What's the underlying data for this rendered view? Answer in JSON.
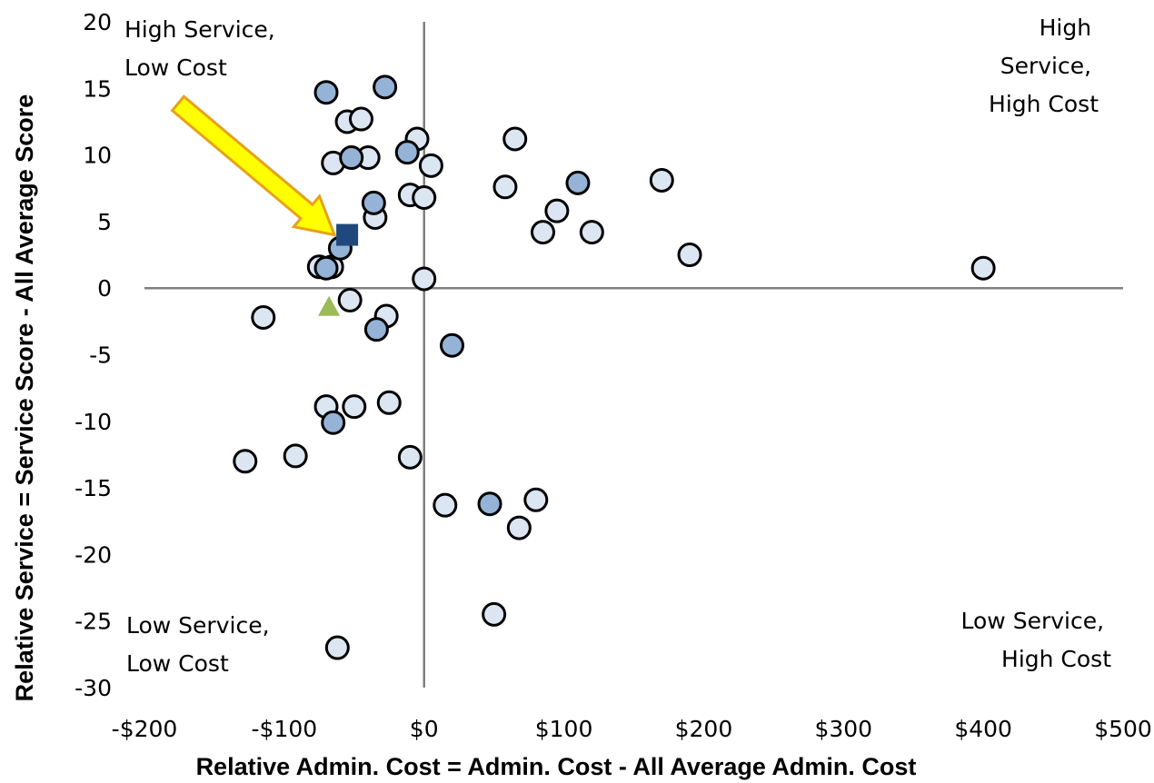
{
  "chart_data": {
    "type": "scatter",
    "xlabel": "Relative Admin. Cost = Admin. Cost - All Average Admin. Cost",
    "ylabel": "Relative Service = Service Score - All Average Score",
    "xlim": [
      -200,
      500
    ],
    "ylim": [
      -30,
      20
    ],
    "x_ticks": [
      {
        "value": -200,
        "label": "-$200"
      },
      {
        "value": -100,
        "label": "-$100"
      },
      {
        "value": 0,
        "label": "$0"
      },
      {
        "value": 100,
        "label": "$100"
      },
      {
        "value": 200,
        "label": "$200"
      },
      {
        "value": 300,
        "label": "$300"
      },
      {
        "value": 400,
        "label": "$400"
      },
      {
        "value": 500,
        "label": "$500"
      }
    ],
    "y_ticks": [
      {
        "value": 20,
        "label": "20"
      },
      {
        "value": 15,
        "label": "15"
      },
      {
        "value": 10,
        "label": "10"
      },
      {
        "value": 5,
        "label": "5"
      },
      {
        "value": 0,
        "label": "0"
      },
      {
        "value": -5,
        "label": "-5"
      },
      {
        "value": -10,
        "label": "-10"
      },
      {
        "value": -15,
        "label": "-15"
      },
      {
        "value": -20,
        "label": "-20"
      },
      {
        "value": -25,
        "label": "-25"
      },
      {
        "value": -30,
        "label": "-30"
      }
    ],
    "grid": false,
    "quadrant_labels": {
      "top_left": [
        "High Service,",
        "Low Cost"
      ],
      "top_right": [
        "High",
        "Service,",
        "High Cost"
      ],
      "bottom_left": [
        "Low Service,",
        "Low Cost"
      ],
      "bottom_right": [
        "Low Service,",
        "High Cost"
      ]
    },
    "series": [
      {
        "marker": "circle",
        "color": "#dce6f2",
        "points": [
          [
            -55,
            12.5
          ],
          [
            -45,
            12.7
          ],
          [
            -65,
            9.4
          ],
          [
            -40,
            9.8
          ],
          [
            -5,
            11.2
          ],
          [
            5,
            9.2
          ],
          [
            -10,
            7.0
          ],
          [
            0,
            6.8
          ],
          [
            -35,
            5.3
          ],
          [
            65,
            11.2
          ],
          [
            58,
            7.6
          ],
          [
            95,
            5.8
          ],
          [
            85,
            4.2
          ],
          [
            120,
            4.2
          ],
          [
            170,
            8.1
          ],
          [
            190,
            2.5
          ],
          [
            400,
            1.5
          ],
          [
            -75,
            1.6
          ],
          [
            -66,
            1.6
          ],
          [
            0,
            0.7
          ],
          [
            -53,
            -0.9
          ],
          [
            -27,
            -2.1
          ],
          [
            -115,
            -2.2
          ],
          [
            -70,
            -8.9
          ],
          [
            -50,
            -8.9
          ],
          [
            -25,
            -8.6
          ],
          [
            -92,
            -12.6
          ],
          [
            -128,
            -13.0
          ],
          [
            -10,
            -12.7
          ],
          [
            15,
            -16.3
          ],
          [
            80,
            -15.9
          ],
          [
            68,
            -18.0
          ],
          [
            50,
            -24.5
          ],
          [
            -62,
            -27.0
          ]
        ]
      },
      {
        "marker": "circle",
        "color": "#95b3d7",
        "points": [
          [
            -70,
            14.7
          ],
          [
            -28,
            15.1
          ],
          [
            -52,
            9.8
          ],
          [
            -12,
            10.2
          ],
          [
            -36,
            6.4
          ],
          [
            110,
            7.9
          ],
          [
            -60,
            3.0
          ],
          [
            -70,
            1.5
          ],
          [
            -34,
            -3.1
          ],
          [
            20,
            -4.3
          ],
          [
            -65,
            -10.1
          ],
          [
            47,
            -16.2
          ]
        ]
      },
      {
        "marker": "square",
        "color": "#1f497d",
        "points": [
          [
            -55,
            4.0
          ]
        ]
      },
      {
        "marker": "triangle",
        "color": "#9bbb59",
        "points": [
          [
            -68,
            -1.4
          ]
        ]
      }
    ],
    "annotation": {
      "type": "arrow",
      "color": "#ffff00",
      "points_to": [
        -55,
        4.0
      ]
    }
  }
}
